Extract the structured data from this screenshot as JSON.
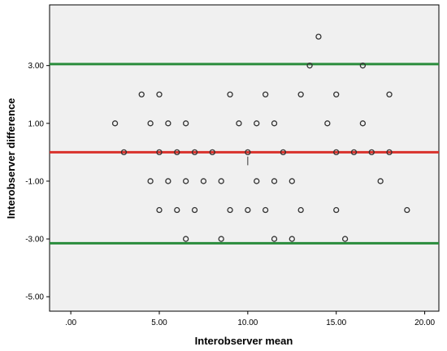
{
  "chart_data": {
    "type": "scatter",
    "xlabel": "Interobserver mean",
    "ylabel": "Interobserver difference",
    "xlim": [
      -1.2,
      20.8
    ],
    "ylim": [
      -5.5,
      5.1
    ],
    "x_ticks": [
      ".00",
      "5.00",
      "10.00",
      "15.00",
      "20.00"
    ],
    "x_tick_values": [
      0,
      5,
      10,
      15,
      20
    ],
    "y_ticks": [
      "3.00",
      "1.00",
      "-1.00",
      "-3.00",
      "-5.00"
    ],
    "y_tick_values": [
      3,
      1,
      -1,
      -3,
      -5
    ],
    "grid": false,
    "background_color": "#f0f0f0",
    "point_color": "#333333",
    "reference_lines": [
      {
        "y": 3.05,
        "color": "#2a8c3c"
      },
      {
        "y": 0.0,
        "color": "#d9312b"
      },
      {
        "y": -3.15,
        "color": "#2a8c3c"
      }
    ],
    "points": [
      [
        14,
        4
      ],
      [
        13.5,
        3
      ],
      [
        16.5,
        3
      ],
      [
        4,
        2
      ],
      [
        5,
        2
      ],
      [
        9,
        2
      ],
      [
        11,
        2
      ],
      [
        13,
        2
      ],
      [
        15,
        2
      ],
      [
        18,
        2
      ],
      [
        2.5,
        1
      ],
      [
        4.5,
        1
      ],
      [
        5.5,
        1
      ],
      [
        6.5,
        1
      ],
      [
        9.5,
        1
      ],
      [
        10.5,
        1
      ],
      [
        11.5,
        1
      ],
      [
        14.5,
        1
      ],
      [
        16.5,
        1
      ],
      [
        3,
        0
      ],
      [
        5,
        0
      ],
      [
        6,
        0
      ],
      [
        7,
        0
      ],
      [
        8,
        0
      ],
      [
        10,
        0
      ],
      [
        12,
        0
      ],
      [
        15,
        0
      ],
      [
        16,
        0
      ],
      [
        17,
        0
      ],
      [
        18,
        0
      ],
      [
        4.5,
        -1
      ],
      [
        5.5,
        -1
      ],
      [
        6.5,
        -1
      ],
      [
        7.5,
        -1
      ],
      [
        8.5,
        -1
      ],
      [
        10.5,
        -1
      ],
      [
        11.5,
        -1
      ],
      [
        12.5,
        -1
      ],
      [
        17.5,
        -1
      ],
      [
        5,
        -2
      ],
      [
        6,
        -2
      ],
      [
        7,
        -2
      ],
      [
        9,
        -2
      ],
      [
        10,
        -2
      ],
      [
        11,
        -2
      ],
      [
        13,
        -2
      ],
      [
        15,
        -2
      ],
      [
        19,
        -2
      ],
      [
        6.5,
        -3
      ],
      [
        8.5,
        -3
      ],
      [
        11.5,
        -3
      ],
      [
        12.5,
        -3
      ],
      [
        15.5,
        -3
      ]
    ],
    "marker": {
      "x": 10,
      "y1": -0.15,
      "y2": -0.45
    }
  }
}
